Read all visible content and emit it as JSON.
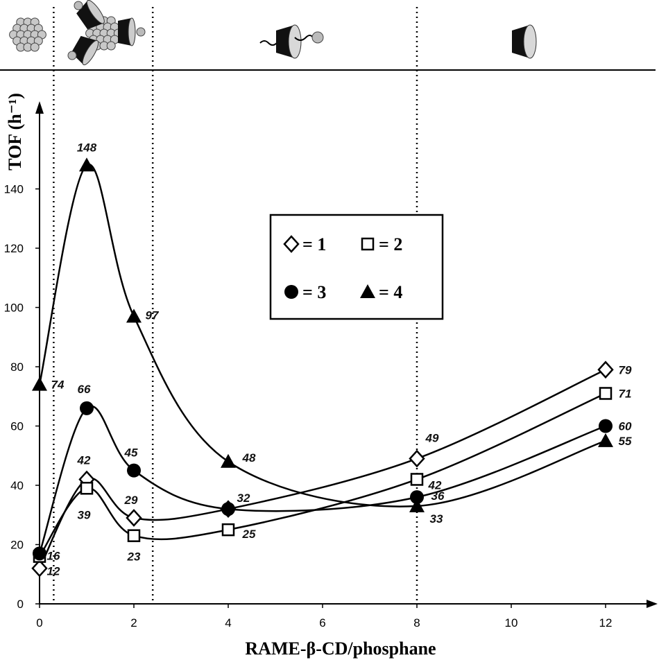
{
  "chart_data": {
    "type": "line",
    "title": "",
    "xlabel": "RAME-β-CD/phosphane",
    "ylabel": "TOF (h⁻¹)",
    "xlim": [
      0,
      13
    ],
    "ylim": [
      0,
      160
    ],
    "xticks": [
      0,
      2,
      4,
      6,
      8,
      10,
      12
    ],
    "yticks": [
      0,
      20,
      40,
      60,
      80,
      100,
      120,
      140
    ],
    "grid": false,
    "legend_position": "center",
    "x": [
      0,
      1,
      2,
      4,
      8,
      12
    ],
    "series": [
      {
        "name": "1",
        "marker": "diamond-open",
        "values": [
          12,
          42,
          29,
          32,
          49,
          79
        ],
        "labels": [
          "12",
          "42",
          "29",
          "32",
          "49",
          "79"
        ]
      },
      {
        "name": "2",
        "marker": "square-open",
        "values": [
          16,
          39,
          23,
          25,
          42,
          71
        ],
        "labels": [
          "16",
          "39",
          "23",
          "25",
          "42",
          "71"
        ]
      },
      {
        "name": "3",
        "marker": "circle-filled",
        "values": [
          17,
          66,
          45,
          32,
          36,
          60
        ],
        "labels": [
          "",
          "66",
          "45",
          "",
          "36",
          "60"
        ]
      },
      {
        "name": "4",
        "marker": "triangle-filled",
        "values": [
          74,
          148,
          97,
          48,
          33,
          55
        ],
        "labels": [
          "74",
          "148",
          "97",
          "48",
          "33",
          "55"
        ]
      }
    ],
    "region_boundaries_x": [
      0.3,
      2.4,
      8
    ],
    "legend_entries": [
      {
        "symbol": "◇",
        "text": "= 1"
      },
      {
        "symbol": "□",
        "text": "= 2"
      },
      {
        "symbol": "●",
        "text": "= 3"
      },
      {
        "symbol": "▲",
        "text": "= 4"
      }
    ]
  }
}
